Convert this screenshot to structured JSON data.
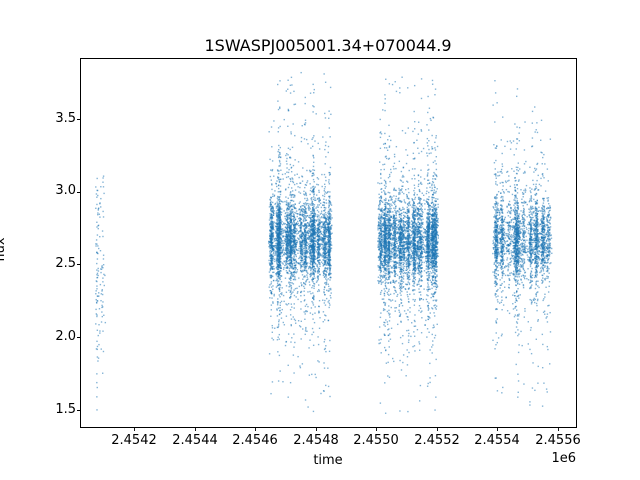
{
  "figure": {
    "background": "#ffffff"
  },
  "chart_data": {
    "type": "scatter",
    "title": "1SWASPJ005001.34+070044.9",
    "xlabel": "time",
    "ylabel": "flux",
    "offset_text": "1e6",
    "marker_color": "#1f77b4",
    "xlim": [
      2454020,
      2455660
    ],
    "ylim": [
      1.38,
      3.92
    ],
    "x_ticks": [
      2454200,
      2454400,
      2454600,
      2454800,
      2455000,
      2455200,
      2455400,
      2455600
    ],
    "x_tick_labels": [
      "2.4542",
      "2.4544",
      "2.4546",
      "2.4548",
      "2.4550",
      "2.4552",
      "2.4554",
      "2.4556"
    ],
    "y_ticks": [
      1.5,
      2.0,
      2.5,
      3.0,
      3.5
    ],
    "y_tick_labels": [
      "1.5",
      "2.0",
      "2.5",
      "3.0",
      "3.5"
    ],
    "grid": false,
    "legend": "none",
    "clusters": [
      {
        "name": "season-1-sparse",
        "x_range": [
          2454072,
          2454098
        ],
        "n_points": 130,
        "n_stripes": 2,
        "bg_frac": 0.5,
        "flux": {
          "mu": 2.5,
          "core_sd": 0.3,
          "wide_sd": 0.55,
          "wide_frac": 0.5,
          "outlier_frac": 0.06,
          "min": 1.45,
          "max": 3.12
        }
      },
      {
        "name": "season-2-dense",
        "x_range": [
          2454645,
          2454850
        ],
        "n_points": 4300,
        "n_stripes": 13,
        "bg_frac": 0.22,
        "flux": {
          "mu": 2.66,
          "core_sd": 0.13,
          "wide_sd": 0.36,
          "wide_frac": 0.26,
          "outlier_frac": 0.025,
          "min": 1.45,
          "max": 3.85
        }
      },
      {
        "name": "season-3-dense",
        "x_range": [
          2455005,
          2455205
        ],
        "n_points": 4300,
        "n_stripes": 13,
        "bg_frac": 0.22,
        "flux": {
          "mu": 2.66,
          "core_sd": 0.13,
          "wide_sd": 0.36,
          "wide_frac": 0.26,
          "outlier_frac": 0.025,
          "min": 1.45,
          "max": 3.82
        }
      },
      {
        "name": "season-4-dense",
        "x_range": [
          2455385,
          2455580
        ],
        "n_points": 2700,
        "n_stripes": 10,
        "bg_frac": 0.22,
        "flux": {
          "mu": 2.66,
          "core_sd": 0.13,
          "wide_sd": 0.36,
          "wide_frac": 0.26,
          "outlier_frac": 0.025,
          "min": 1.45,
          "max": 3.78
        }
      }
    ]
  }
}
